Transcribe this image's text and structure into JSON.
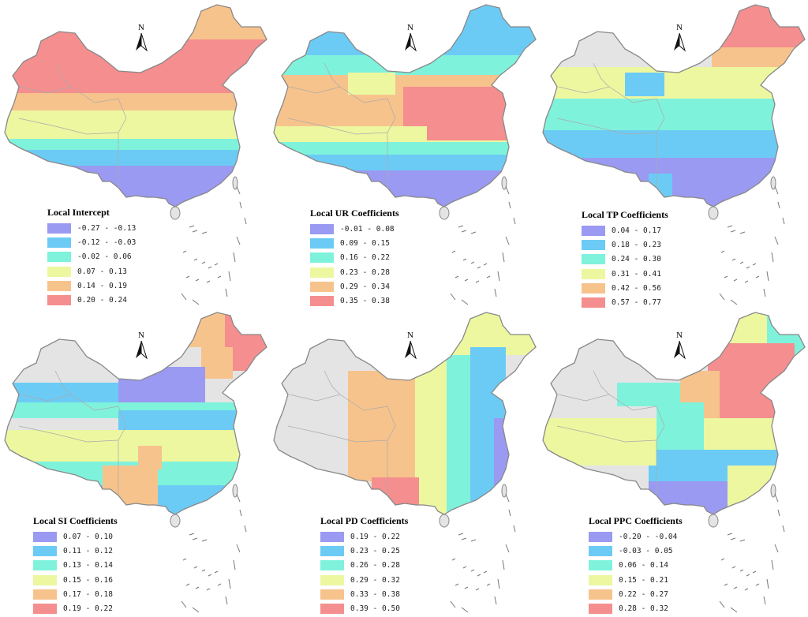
{
  "colors": {
    "background": "#e4e4e4",
    "border": "#888888",
    "classes": [
      "#9a9af2",
      "#6ccbf5",
      "#7ff2dc",
      "#ecf7a0",
      "#f7c38c",
      "#f58e8e"
    ]
  },
  "north_arrow_label": "N",
  "panels": [
    {
      "id": "intercept",
      "legend_title": "Local  Intercept",
      "ranges": [
        "-0.27 - -0.13",
        "-0.12 - -0.03",
        "-0.02 - 0.06",
        "0.07 - 0.13",
        "0.14 - 0.19",
        "0.20 - 0.24"
      ],
      "pattern": "north-high"
    },
    {
      "id": "ur",
      "legend_title": "Local UR  Coefficients",
      "ranges": [
        "-0.01 - 0.08",
        "0.09 - 0.15",
        "0.16 - 0.22",
        "0.23 - 0.28",
        "0.29 - 0.34",
        "0.35 - 0.38"
      ],
      "pattern": "central-high"
    },
    {
      "id": "tp",
      "legend_title": "Local TP Coefficients",
      "ranges": [
        "0.04 - 0.17",
        "0.18 - 0.23",
        "0.24 - 0.30",
        "0.31 - 0.41",
        "0.42 - 0.56",
        "0.57 - 0.77"
      ],
      "pattern": "northeast-high"
    },
    {
      "id": "si",
      "legend_title": "Local SI Coefficients",
      "ranges": [
        "0.07 - 0.10",
        "0.11 - 0.12",
        "0.13 - 0.14",
        "0.15 - 0.16",
        "0.17 - 0.18",
        "0.19 - 0.22"
      ],
      "pattern": "north-low"
    },
    {
      "id": "pd",
      "legend_title": "Local PD Coefficients",
      "ranges": [
        "0.19 - 0.22",
        "0.23 - 0.25",
        "0.26 - 0.28",
        "0.29 - 0.32",
        "0.33 - 0.38",
        "0.39 - 0.50"
      ],
      "pattern": "east-low"
    },
    {
      "id": "ppc",
      "legend_title": "Local PPC Coefficients",
      "ranges": [
        "-0.20 - -0.04",
        "-0.03 - 0.05",
        "0.06 - 0.14",
        "0.15 - 0.21",
        "0.22 - 0.27",
        "0.28 - 0.32"
      ],
      "pattern": "northeast-high-south-low"
    }
  ]
}
